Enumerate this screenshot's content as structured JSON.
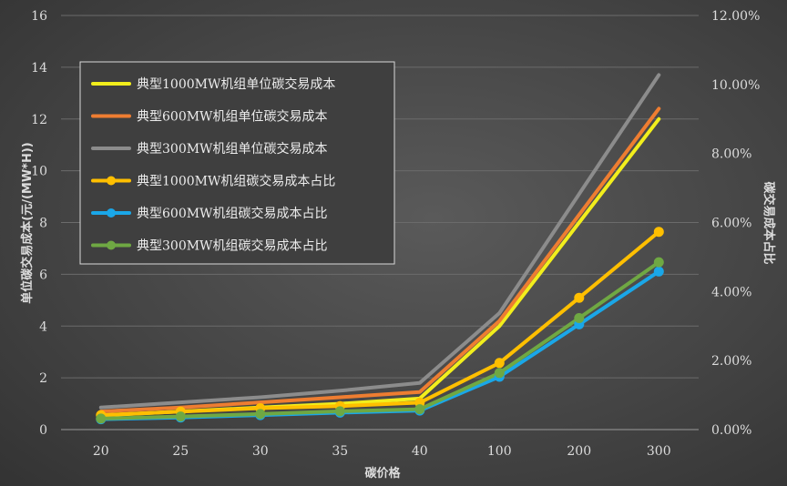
{
  "chart_data": {
    "type": "line",
    "categories": [
      "20",
      "25",
      "30",
      "35",
      "40",
      "100",
      "200",
      "300"
    ],
    "xlabel": "碳价格",
    "ylabel": "单位碳交易成本(元/(MW*H))",
    "y2label": "碳交易成本占比",
    "ylim": [
      0,
      16
    ],
    "y2lim": [
      0,
      0.12
    ],
    "yticks": [
      "0",
      "2",
      "4",
      "6",
      "8",
      "10",
      "12",
      "14",
      "16"
    ],
    "y2ticks": [
      "0.00%",
      "2.00%",
      "4.00%",
      "6.00%",
      "8.00%",
      "10.00%",
      "12.00%"
    ],
    "grid": true,
    "legend_position": "upper-left",
    "series": [
      {
        "name": "典型1000MW机组单位碳交易成本",
        "axis": "left",
        "color": "#f2ee1c",
        "marker": false,
        "values": [
          0.55,
          0.7,
          0.85,
          1.0,
          1.2,
          4.0,
          8.0,
          12.0
        ]
      },
      {
        "name": "典型600MW机组单位碳交易成本",
        "axis": "left",
        "color": "#ee7d31",
        "marker": false,
        "values": [
          0.7,
          0.85,
          1.05,
          1.25,
          1.45,
          4.2,
          8.3,
          12.4
        ]
      },
      {
        "name": "典型300MW机组单位碳交易成本",
        "axis": "left",
        "color": "#8c8c8c",
        "marker": false,
        "values": [
          0.85,
          1.05,
          1.25,
          1.5,
          1.8,
          4.5,
          9.1,
          13.7
        ]
      },
      {
        "name": "典型1000MW机组碳交易成本占比",
        "axis": "right",
        "color": "#ffbf00",
        "marker": true,
        "values": [
          0.0042,
          0.0052,
          0.0062,
          0.0068,
          0.0078,
          0.0193,
          0.0382,
          0.0573
        ]
      },
      {
        "name": "典型600MW机组碳交易成本占比",
        "axis": "right",
        "color": "#1aa7e8",
        "marker": true,
        "values": [
          0.003,
          0.0035,
          0.0042,
          0.0049,
          0.0055,
          0.0153,
          0.0305,
          0.0458
        ]
      },
      {
        "name": "典型300MW机组碳交易成本占比",
        "axis": "right",
        "color": "#6fa843",
        "marker": true,
        "values": [
          0.0032,
          0.0038,
          0.0045,
          0.0053,
          0.0059,
          0.0164,
          0.0323,
          0.0485
        ]
      }
    ]
  }
}
